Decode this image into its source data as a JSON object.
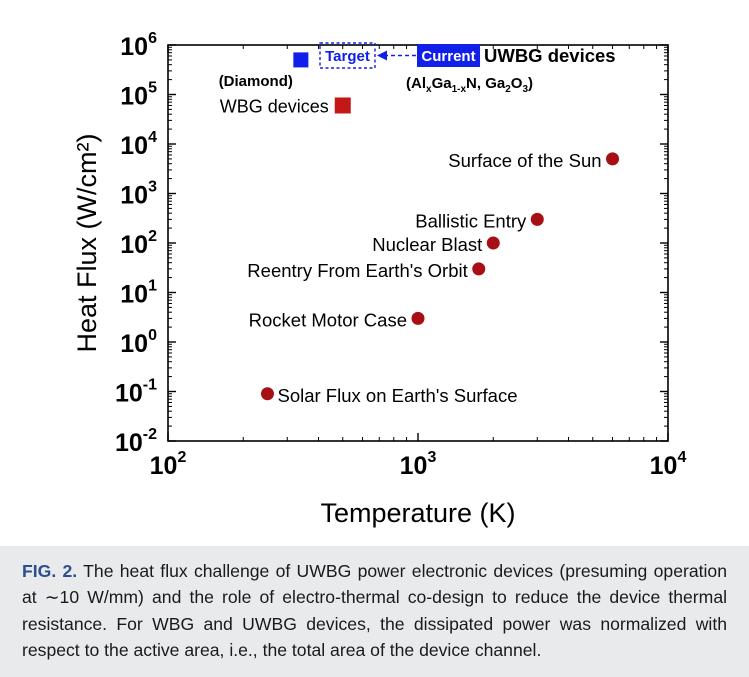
{
  "chart_data": {
    "type": "scatter",
    "x_scale": "log",
    "y_scale": "log",
    "xlim": [
      100,
      10000
    ],
    "ylim": [
      0.01,
      1000000
    ],
    "grid": false,
    "xlabel": "Temperature (K)",
    "ylabel": "Heat Flux (W/cm²)",
    "x_ticks": [
      {
        "base": "10",
        "exp": "2"
      },
      {
        "base": "10",
        "exp": "3"
      },
      {
        "base": "10",
        "exp": "4"
      }
    ],
    "y_ticks": [
      {
        "base": "10",
        "exp": "-2"
      },
      {
        "base": "10",
        "exp": "-1"
      },
      {
        "base": "10",
        "exp": "0"
      },
      {
        "base": "10",
        "exp": "1"
      },
      {
        "base": "10",
        "exp": "2"
      },
      {
        "base": "10",
        "exp": "3"
      },
      {
        "base": "10",
        "exp": "4"
      },
      {
        "base": "10",
        "exp": "5"
      },
      {
        "base": "10",
        "exp": "6"
      }
    ],
    "points": [
      {
        "label": "Solar Flux on Earth's Surface",
        "x": 250,
        "y": 0.09,
        "marker": "circle",
        "color": "#a80f14"
      },
      {
        "label": "Rocket Motor Case",
        "x": 1000,
        "y": 3,
        "marker": "circle",
        "color": "#a80f14"
      },
      {
        "label": "Reentry From Earth's Orbit",
        "x": 1750,
        "y": 30,
        "marker": "circle",
        "color": "#a80f14"
      },
      {
        "label": "Nuclear Blast",
        "x": 2000,
        "y": 100,
        "marker": "circle",
        "color": "#a80f14"
      },
      {
        "label": "Ballistic Entry",
        "x": 3000,
        "y": 300,
        "marker": "circle",
        "color": "#a80f14"
      },
      {
        "label": "Surface of the Sun",
        "x": 6000,
        "y": 5000,
        "marker": "circle",
        "color": "#a80f14"
      },
      {
        "label": "WBG devices",
        "x": 500,
        "y": 60000,
        "marker": "square",
        "color": "#c41818"
      },
      {
        "label": "(Diamond)",
        "x": 340,
        "y": 500000,
        "marker": "square",
        "color": "#1020e8"
      }
    ],
    "annotations": {
      "target_label": "Target",
      "current_label": "Current",
      "uwbg_label": "UWBG devices",
      "uwbg_materials": {
        "p1": "(Al",
        "sub1": "x",
        "p2": "Ga",
        "sub2": "1-x",
        "p3": "N, Ga",
        "sub3": "2",
        "p4": "O",
        "sub4": "3",
        "p5": ")"
      }
    },
    "colors": {
      "circle": "#a80f14",
      "wbg_square": "#c41818",
      "uwbg_blue": "#1020e8"
    }
  },
  "caption": {
    "fig_label": "FIG. 2.",
    "part1": " The heat flux challenge of UWBG power electronic devices (presuming operation at ",
    "tilde": "∼",
    "part2": "10 W/mm) and the role of electro-thermal co-design to reduce the device thermal resistance. For WBG and UWBG devices, the dissipated power was normalized with respect to the active area, i.e., the total area of the device channel."
  }
}
